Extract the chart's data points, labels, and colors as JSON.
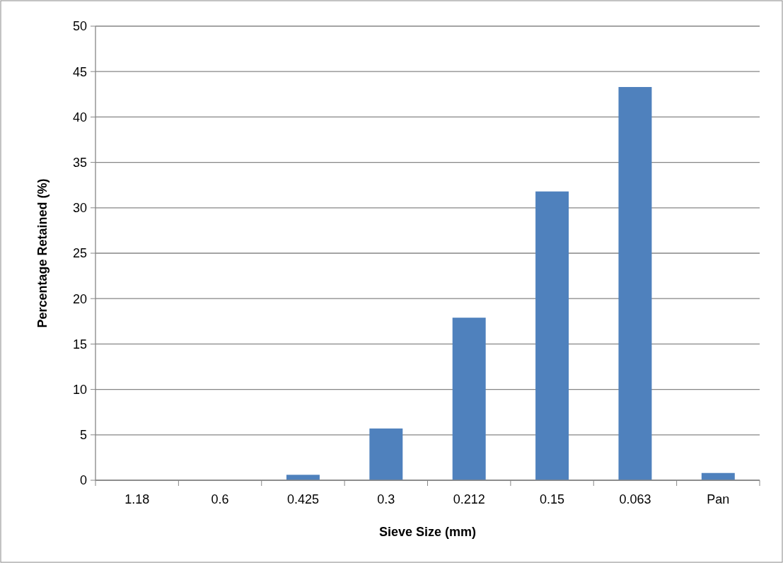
{
  "chart_data": {
    "type": "bar",
    "xlabel": "Sieve Size (mm)",
    "ylabel": "Percentage Retained (%)",
    "categories": [
      "1.18",
      "0.6",
      "0.425",
      "0.3",
      "0.212",
      "0.15",
      "0.063",
      "Pan"
    ],
    "values": [
      0,
      0,
      0.6,
      5.7,
      17.9,
      31.8,
      43.3,
      0.8
    ],
    "color": "#4f81bd",
    "ylim": [
      0,
      50
    ],
    "yticks": [
      0,
      5,
      10,
      15,
      20,
      25,
      30,
      35,
      40,
      45,
      50
    ],
    "grid": "y"
  }
}
